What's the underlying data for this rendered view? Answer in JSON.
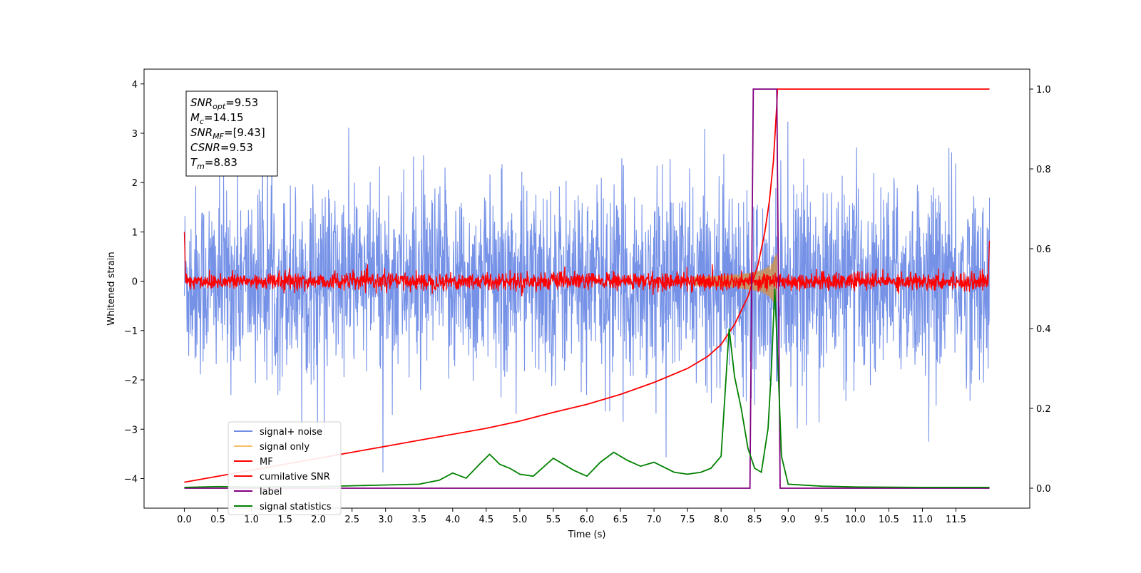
{
  "chart_data": {
    "type": "line",
    "title": "",
    "xlabel": "Time (s)",
    "ylabel": "Whitened strain",
    "xlim": [
      -0.6,
      12.6
    ],
    "ylim": [
      -4.6,
      4.3
    ],
    "y2lim": [
      -0.05,
      1.05
    ],
    "x_ticks": [
      0.0,
      0.5,
      1.0,
      1.5,
      2.0,
      2.5,
      3.0,
      3.5,
      4.0,
      4.5,
      5.0,
      5.5,
      6.0,
      6.5,
      7.0,
      7.5,
      8.0,
      8.5,
      9.0,
      9.5,
      10.0,
      10.5,
      11.0,
      11.5
    ],
    "x_tick_labels": [
      "0.0",
      "0.5",
      "1.0",
      "1.5",
      "2.0",
      "2.5",
      "3.0",
      "3.5",
      "4.0",
      "4.5",
      "5.0",
      "5.5",
      "6.0",
      "6.5",
      "7.0",
      "7.5",
      "8.0",
      "8.5",
      "9.0",
      "9.5",
      "10.0",
      "10.5",
      "11.0",
      "11.5"
    ],
    "y_ticks": [
      4,
      3,
      2,
      1,
      0,
      -1,
      -2,
      -3,
      -4
    ],
    "y_tick_labels": [
      "4",
      "3",
      "2",
      "1",
      "0",
      "−1",
      "−2",
      "−3",
      "−4"
    ],
    "y2_ticks": [
      1.0,
      0.8,
      0.6,
      0.4,
      0.2,
      0.0
    ],
    "y2_tick_labels": [
      "1.0",
      "0.8",
      "0.6",
      "0.4",
      "0.2",
      "0.0"
    ],
    "grid": false,
    "legend_position": "lower-left",
    "info_box": [
      {
        "symbol": "SNR",
        "sub": "opt",
        "value": "=9.53"
      },
      {
        "symbol": "M",
        "sub": "c",
        "value": "=14.15"
      },
      {
        "symbol": "SNR",
        "sub": "MF",
        "value": "=[9.43]"
      },
      {
        "symbol": "CSNR",
        "sub": "",
        "value": "=9.53"
      },
      {
        "symbol": "T",
        "sub": "m",
        "value": "=8.83"
      }
    ],
    "series": [
      {
        "name": "signal+ noise",
        "axis": "left",
        "color": "#6f8ce6",
        "kind": "noise_trace",
        "x_range": [
          0.0,
          12.0
        ],
        "noise_std": 0.95,
        "min": -4.2,
        "max": 3.9
      },
      {
        "name": "signal only",
        "axis": "left",
        "color": "#f5c06a",
        "kind": "chirp",
        "x_range": [
          7.6,
          8.85
        ],
        "amplitude_end": 0.65,
        "merger_time": 8.83
      },
      {
        "name": "MF",
        "axis": "left",
        "color": "#ff0000",
        "kind": "noise_trace",
        "x_range": [
          0.0,
          12.0
        ],
        "noise_std": 0.09,
        "edge_spikes": [
          1.0,
          0.82
        ]
      },
      {
        "name": "cumilative SNR",
        "axis": "right",
        "color": "#ff0000",
        "x": [
          0.0,
          0.5,
          1.0,
          1.5,
          2.0,
          2.5,
          3.0,
          3.5,
          4.0,
          4.5,
          5.0,
          5.5,
          6.0,
          6.5,
          7.0,
          7.5,
          7.8,
          8.0,
          8.2,
          8.4,
          8.55,
          8.65,
          8.72,
          8.78,
          8.83,
          8.84,
          9.0,
          10.0,
          11.0,
          12.0
        ],
        "y": [
          0.015,
          0.03,
          0.045,
          0.06,
          0.075,
          0.09,
          0.105,
          0.12,
          0.135,
          0.15,
          0.168,
          0.19,
          0.21,
          0.235,
          0.265,
          0.3,
          0.33,
          0.36,
          0.41,
          0.48,
          0.56,
          0.64,
          0.72,
          0.82,
          0.96,
          1.0,
          1.0,
          1.0,
          1.0,
          1.0
        ]
      },
      {
        "name": "label",
        "axis": "right",
        "color": "#800080",
        "x": [
          0.0,
          8.43,
          8.48,
          8.83,
          8.88,
          12.0
        ],
        "y": [
          0.0,
          0.0,
          1.0,
          1.0,
          0.0,
          0.0
        ]
      },
      {
        "name": "signal statistics",
        "axis": "right",
        "color": "#008000",
        "x": [
          0.0,
          0.5,
          1.0,
          1.5,
          2.0,
          2.5,
          3.0,
          3.5,
          3.8,
          4.0,
          4.2,
          4.4,
          4.55,
          4.7,
          4.85,
          5.0,
          5.2,
          5.5,
          5.8,
          6.0,
          6.2,
          6.4,
          6.6,
          6.8,
          7.0,
          7.3,
          7.5,
          7.7,
          7.85,
          8.0,
          8.12,
          8.2,
          8.3,
          8.4,
          8.5,
          8.6,
          8.7,
          8.75,
          8.8,
          8.85,
          8.9,
          9.0,
          9.5,
          10.0,
          11.0,
          12.0
        ],
        "y": [
          0.002,
          0.004,
          0.003,
          0.004,
          0.004,
          0.006,
          0.008,
          0.01,
          0.02,
          0.038,
          0.025,
          0.06,
          0.085,
          0.06,
          0.05,
          0.035,
          0.03,
          0.075,
          0.045,
          0.03,
          0.065,
          0.09,
          0.07,
          0.055,
          0.065,
          0.04,
          0.035,
          0.04,
          0.05,
          0.08,
          0.4,
          0.28,
          0.2,
          0.1,
          0.05,
          0.04,
          0.15,
          0.3,
          0.5,
          0.3,
          0.08,
          0.01,
          0.005,
          0.003,
          0.002,
          0.002
        ]
      }
    ]
  }
}
